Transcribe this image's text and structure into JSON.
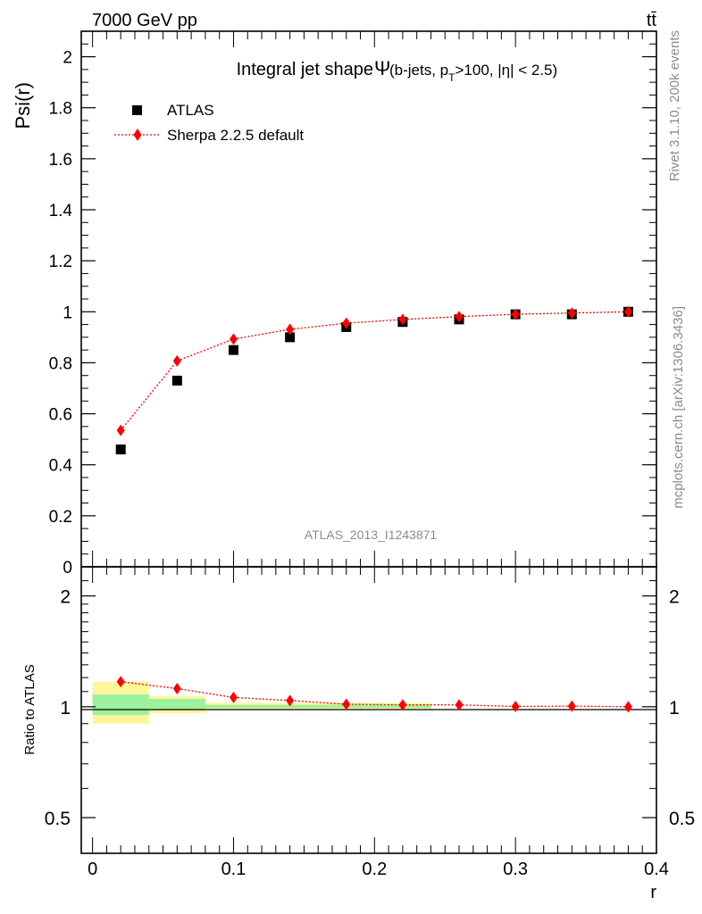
{
  "header": {
    "left_label": "7000 GeV pp",
    "right_label": "tt̄",
    "side_label_top": "Rivet 3.1.10,  200k events",
    "side_label_bottom": "mcplots.cern.ch [arXiv:1306.3436]",
    "watermark": "ATLAS_2013_I1243871"
  },
  "chart_data": [
    {
      "type": "scatter",
      "title": "Integral jet shape",
      "title_symbol": "Ψ",
      "title_sub_a": "(b-jets, p",
      "title_sub_T": "T",
      "title_sub_b": ">100, |η| < 2.5)",
      "ylabel": "Psi(r)",
      "xlabel": "r",
      "xlim": [
        -0.008,
        0.4
      ],
      "ylim": [
        0,
        2.1
      ],
      "x_ticks": [
        0,
        0.1,
        0.2,
        0.3,
        0.4
      ],
      "y_ticks": [
        0,
        0.2,
        0.4,
        0.6,
        0.8,
        1,
        1.2,
        1.4,
        1.6,
        1.8,
        2
      ],
      "y_tick_labels": [
        "0",
        "0.2",
        "0.4",
        "0.6",
        "0.8",
        "1",
        "1.2",
        "1.4",
        "1.6",
        "1.8",
        "2"
      ],
      "legend_placement": "top-left",
      "series": [
        {
          "name": "ATLAS",
          "marker": "square",
          "color": "#000000",
          "x": [
            0.02,
            0.06,
            0.1,
            0.14,
            0.18,
            0.22,
            0.26,
            0.3,
            0.34,
            0.38
          ],
          "values": [
            0.46,
            0.73,
            0.85,
            0.9,
            0.94,
            0.96,
            0.97,
            0.99,
            0.99,
            1.0
          ]
        },
        {
          "name": "Sherpa 2.2.5 default",
          "marker": "diamond",
          "line": "dotted",
          "color": "#ff0000",
          "x": [
            0.02,
            0.06,
            0.1,
            0.14,
            0.18,
            0.22,
            0.26,
            0.3,
            0.34,
            0.38
          ],
          "values": [
            0.535,
            0.807,
            0.893,
            0.931,
            0.955,
            0.97,
            0.981,
            0.99,
            0.995,
            1.0
          ]
        }
      ]
    },
    {
      "type": "scatter",
      "ylabel": "Ratio to ATLAS",
      "xlabel": "r",
      "xlim": [
        -0.008,
        0.4
      ],
      "ylim": [
        0.4,
        2.4
      ],
      "log_y": true,
      "x_ticks": [
        0,
        0.1,
        0.2,
        0.3,
        0.4
      ],
      "x_tick_labels": [
        "0",
        "0.1",
        "0.2",
        "0.3",
        "0.4"
      ],
      "y_ticks": [
        0.5,
        1,
        2
      ],
      "y_tick_labels": [
        "0.5",
        "1",
        "2"
      ],
      "bands": [
        {
          "x0": 0.0,
          "x1": 0.04,
          "yellow": [
            0.9,
            1.17
          ],
          "green": [
            0.95,
            1.08
          ]
        },
        {
          "x0": 0.04,
          "x1": 0.08,
          "yellow": [
            0.96,
            1.07
          ],
          "green": [
            0.98,
            1.05
          ]
        },
        {
          "x0": 0.08,
          "x1": 0.24,
          "yellow": [
            0.985,
            1.025
          ],
          "green": [
            0.993,
            1.012
          ]
        }
      ],
      "band_colors": {
        "yellow": "#fff59c",
        "green": "#9df29d"
      },
      "series": [
        {
          "name": "Sherpa 2.2.5 default",
          "marker": "diamond",
          "line": "dotted",
          "color": "#ff0000",
          "x": [
            0.02,
            0.06,
            0.1,
            0.14,
            0.18,
            0.22,
            0.26,
            0.3,
            0.34,
            0.38
          ],
          "values": [
            1.17,
            1.12,
            1.06,
            1.04,
            1.016,
            1.012,
            1.012,
            1.002,
            1.004,
            1.0
          ]
        }
      ]
    }
  ]
}
